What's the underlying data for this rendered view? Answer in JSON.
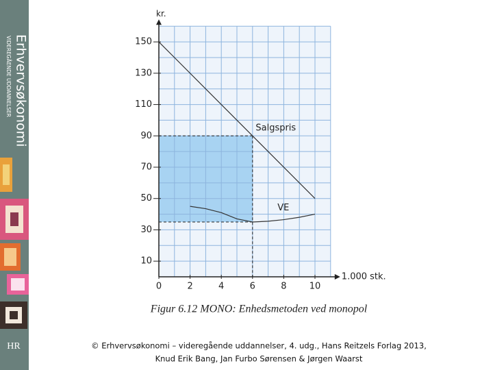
{
  "sidebar": {
    "title": "Erhvervsøkonomi",
    "subtitle": "VIDEREGÅENDE UDDANNELSER",
    "logo": "HR"
  },
  "chart_data": {
    "type": "line",
    "ylabel": "kr.",
    "xlabel": "1.000 stk.",
    "caption": "Figur 6.12 MONO: Enhedsmetoden ved monopol",
    "xlim": [
      0,
      11
    ],
    "ylim": [
      0,
      160
    ],
    "xticks": [
      0,
      2,
      4,
      6,
      8,
      10
    ],
    "yticks": [
      10,
      30,
      50,
      70,
      90,
      110,
      130,
      150
    ],
    "xgrid": [
      0,
      1,
      2,
      3,
      4,
      5,
      6,
      7,
      8,
      9,
      10,
      11
    ],
    "ygrid": [
      0,
      10,
      20,
      30,
      40,
      50,
      60,
      70,
      80,
      90,
      100,
      110,
      120,
      130,
      140,
      150,
      160
    ],
    "series": [
      {
        "name": "Salgspris",
        "color": "#333333",
        "x": [
          0,
          10
        ],
        "values": [
          150,
          50
        ]
      },
      {
        "name": "VE",
        "color": "#333333",
        "x": [
          2,
          3,
          4,
          5,
          6,
          7,
          8,
          9,
          10
        ],
        "values": [
          45,
          43.5,
          41,
          37,
          35,
          35.5,
          36.5,
          38,
          40
        ]
      }
    ],
    "optimum": {
      "x": 6,
      "price": 90,
      "cost": 35
    }
  },
  "footer": [
    "© Erhvervsøkonomi – videregående uddannelser, 4. udg., Hans Reitzels Forlag 2013,",
    "Knud Erik Bang, Jan Furbo Sørensen & Jørgen Waarst"
  ]
}
